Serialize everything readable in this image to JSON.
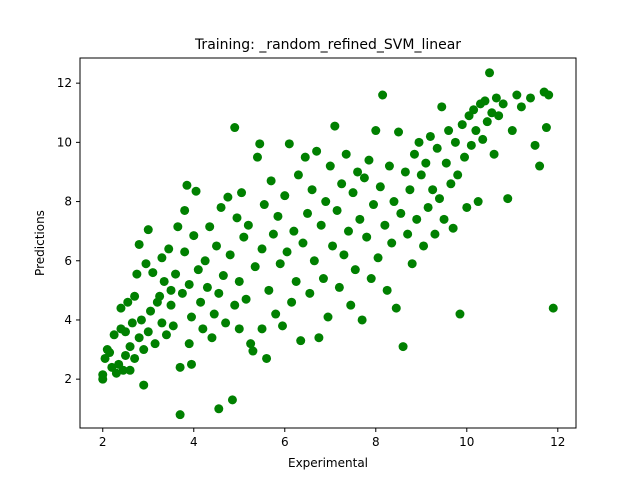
{
  "chart_data": {
    "type": "scatter",
    "title": "Training: _random_refined_SVM_linear",
    "xlabel": "Experimental",
    "ylabel": "Predictions",
    "xlim": [
      1.5,
      12.4
    ],
    "ylim": [
      0.35,
      12.85
    ],
    "xticks": [
      2,
      4,
      6,
      8,
      10,
      12
    ],
    "yticks": [
      2,
      4,
      6,
      8,
      10,
      12
    ],
    "grid": false,
    "legend": "none",
    "marker_color": "#008000",
    "series": [
      {
        "points": [
          [
            2.0,
            2.0
          ],
          [
            2.0,
            2.15
          ],
          [
            2.05,
            2.7
          ],
          [
            2.1,
            3.0
          ],
          [
            2.15,
            2.9
          ],
          [
            2.2,
            2.4
          ],
          [
            2.25,
            3.5
          ],
          [
            2.3,
            2.2
          ],
          [
            2.35,
            2.5
          ],
          [
            2.4,
            3.7
          ],
          [
            2.4,
            4.4
          ],
          [
            2.45,
            2.3
          ],
          [
            2.5,
            2.8
          ],
          [
            2.5,
            3.6
          ],
          [
            2.55,
            4.6
          ],
          [
            2.6,
            2.3
          ],
          [
            2.6,
            3.1
          ],
          [
            2.65,
            3.9
          ],
          [
            2.7,
            2.7
          ],
          [
            2.7,
            4.8
          ],
          [
            2.75,
            5.55
          ],
          [
            2.8,
            3.4
          ],
          [
            2.8,
            6.55
          ],
          [
            2.85,
            4.0
          ],
          [
            2.9,
            3.0
          ],
          [
            2.9,
            1.8
          ],
          [
            2.95,
            5.9
          ],
          [
            3.0,
            3.6
          ],
          [
            3.0,
            7.05
          ],
          [
            3.05,
            4.3
          ],
          [
            3.1,
            5.6
          ],
          [
            3.15,
            3.2
          ],
          [
            3.2,
            4.6
          ],
          [
            3.25,
            4.8
          ],
          [
            3.3,
            6.1
          ],
          [
            3.3,
            3.9
          ],
          [
            3.35,
            5.3
          ],
          [
            3.4,
            3.5
          ],
          [
            3.45,
            6.4
          ],
          [
            3.5,
            4.5
          ],
          [
            3.5,
            5.0
          ],
          [
            3.55,
            3.8
          ],
          [
            3.6,
            5.55
          ],
          [
            3.65,
            7.15
          ],
          [
            3.7,
            0.8
          ],
          [
            3.7,
            2.4
          ],
          [
            3.75,
            4.9
          ],
          [
            3.8,
            6.3
          ],
          [
            3.8,
            7.7
          ],
          [
            3.85,
            8.55
          ],
          [
            3.9,
            5.2
          ],
          [
            3.9,
            3.2
          ],
          [
            3.95,
            4.1
          ],
          [
            3.95,
            2.5
          ],
          [
            4.0,
            6.85
          ],
          [
            4.05,
            8.35
          ],
          [
            4.1,
            5.7
          ],
          [
            4.15,
            4.6
          ],
          [
            4.2,
            3.7
          ],
          [
            4.25,
            6.0
          ],
          [
            4.3,
            5.1
          ],
          [
            4.35,
            7.15
          ],
          [
            4.4,
            3.4
          ],
          [
            4.45,
            4.2
          ],
          [
            4.5,
            6.5
          ],
          [
            4.55,
            1.0
          ],
          [
            4.55,
            4.9
          ],
          [
            4.6,
            7.8
          ],
          [
            4.65,
            5.5
          ],
          [
            4.7,
            3.9
          ],
          [
            4.75,
            8.15
          ],
          [
            4.8,
            6.2
          ],
          [
            4.85,
            1.3
          ],
          [
            4.9,
            10.5
          ],
          [
            4.9,
            4.5
          ],
          [
            4.95,
            7.45
          ],
          [
            5.0,
            5.3
          ],
          [
            5.0,
            3.7
          ],
          [
            5.05,
            8.3
          ],
          [
            5.1,
            6.8
          ],
          [
            5.15,
            4.7
          ],
          [
            5.2,
            7.2
          ],
          [
            5.25,
            3.2
          ],
          [
            5.3,
            2.95
          ],
          [
            5.35,
            5.8
          ],
          [
            5.4,
            9.5
          ],
          [
            5.45,
            9.95
          ],
          [
            5.5,
            6.4
          ],
          [
            5.5,
            3.7
          ],
          [
            5.55,
            7.9
          ],
          [
            5.6,
            2.7
          ],
          [
            5.65,
            5.0
          ],
          [
            5.7,
            8.7
          ],
          [
            5.75,
            6.9
          ],
          [
            5.8,
            4.2
          ],
          [
            5.85,
            7.5
          ],
          [
            5.9,
            5.9
          ],
          [
            5.95,
            3.8
          ],
          [
            6.0,
            8.2
          ],
          [
            6.05,
            6.3
          ],
          [
            6.1,
            9.95
          ],
          [
            6.15,
            4.6
          ],
          [
            6.2,
            7.0
          ],
          [
            6.25,
            5.3
          ],
          [
            6.3,
            8.9
          ],
          [
            6.35,
            3.3
          ],
          [
            6.4,
            6.6
          ],
          [
            6.45,
            9.5
          ],
          [
            6.5,
            7.6
          ],
          [
            6.55,
            4.9
          ],
          [
            6.6,
            8.4
          ],
          [
            6.65,
            6.0
          ],
          [
            6.7,
            9.7
          ],
          [
            6.75,
            3.4
          ],
          [
            6.8,
            7.2
          ],
          [
            6.85,
            5.4
          ],
          [
            6.9,
            8.0
          ],
          [
            6.95,
            4.1
          ],
          [
            7.0,
            9.2
          ],
          [
            7.05,
            6.5
          ],
          [
            7.1,
            10.55
          ],
          [
            7.15,
            7.7
          ],
          [
            7.2,
            5.1
          ],
          [
            7.25,
            8.6
          ],
          [
            7.3,
            6.2
          ],
          [
            7.35,
            9.6
          ],
          [
            7.4,
            7.0
          ],
          [
            7.45,
            4.5
          ],
          [
            7.5,
            8.3
          ],
          [
            7.55,
            5.7
          ],
          [
            7.6,
            9.0
          ],
          [
            7.65,
            7.4
          ],
          [
            7.7,
            4.0
          ],
          [
            7.75,
            8.8
          ],
          [
            7.8,
            6.8
          ],
          [
            7.85,
            9.4
          ],
          [
            7.9,
            5.4
          ],
          [
            7.95,
            7.9
          ],
          [
            8.0,
            10.4
          ],
          [
            8.05,
            6.1
          ],
          [
            8.1,
            8.5
          ],
          [
            8.15,
            11.6
          ],
          [
            8.2,
            7.2
          ],
          [
            8.25,
            5.0
          ],
          [
            8.3,
            9.2
          ],
          [
            8.35,
            6.6
          ],
          [
            8.4,
            8.0
          ],
          [
            8.45,
            4.4
          ],
          [
            8.5,
            10.35
          ],
          [
            8.55,
            7.6
          ],
          [
            8.6,
            3.1
          ],
          [
            8.65,
            9.0
          ],
          [
            8.7,
            6.9
          ],
          [
            8.75,
            8.4
          ],
          [
            8.8,
            5.9
          ],
          [
            8.85,
            9.6
          ],
          [
            8.9,
            7.4
          ],
          [
            8.95,
            10.0
          ],
          [
            9.0,
            8.9
          ],
          [
            9.05,
            6.5
          ],
          [
            9.1,
            9.3
          ],
          [
            9.15,
            7.8
          ],
          [
            9.2,
            10.2
          ],
          [
            9.25,
            8.4
          ],
          [
            9.3,
            6.9
          ],
          [
            9.35,
            9.8
          ],
          [
            9.4,
            8.1
          ],
          [
            9.45,
            11.2
          ],
          [
            9.5,
            7.4
          ],
          [
            9.55,
            9.3
          ],
          [
            9.6,
            10.4
          ],
          [
            9.65,
            8.6
          ],
          [
            9.7,
            7.1
          ],
          [
            9.75,
            10.0
          ],
          [
            9.8,
            8.9
          ],
          [
            9.85,
            4.2
          ],
          [
            9.9,
            10.6
          ],
          [
            9.95,
            9.5
          ],
          [
            10.0,
            7.8
          ],
          [
            10.05,
            10.9
          ],
          [
            10.1,
            9.9
          ],
          [
            10.15,
            11.1
          ],
          [
            10.2,
            10.4
          ],
          [
            10.25,
            8.0
          ],
          [
            10.3,
            11.3
          ],
          [
            10.35,
            10.1
          ],
          [
            10.4,
            11.4
          ],
          [
            10.45,
            10.7
          ],
          [
            10.5,
            12.35
          ],
          [
            10.55,
            11.0
          ],
          [
            10.6,
            9.6
          ],
          [
            10.65,
            11.5
          ],
          [
            10.7,
            10.9
          ],
          [
            10.8,
            11.3
          ],
          [
            10.9,
            8.1
          ],
          [
            11.0,
            10.4
          ],
          [
            11.1,
            11.6
          ],
          [
            11.2,
            11.2
          ],
          [
            11.4,
            11.5
          ],
          [
            11.5,
            9.9
          ],
          [
            11.6,
            9.2
          ],
          [
            11.7,
            11.7
          ],
          [
            11.75,
            10.5
          ],
          [
            11.8,
            11.6
          ],
          [
            11.9,
            4.4
          ]
        ]
      }
    ]
  }
}
